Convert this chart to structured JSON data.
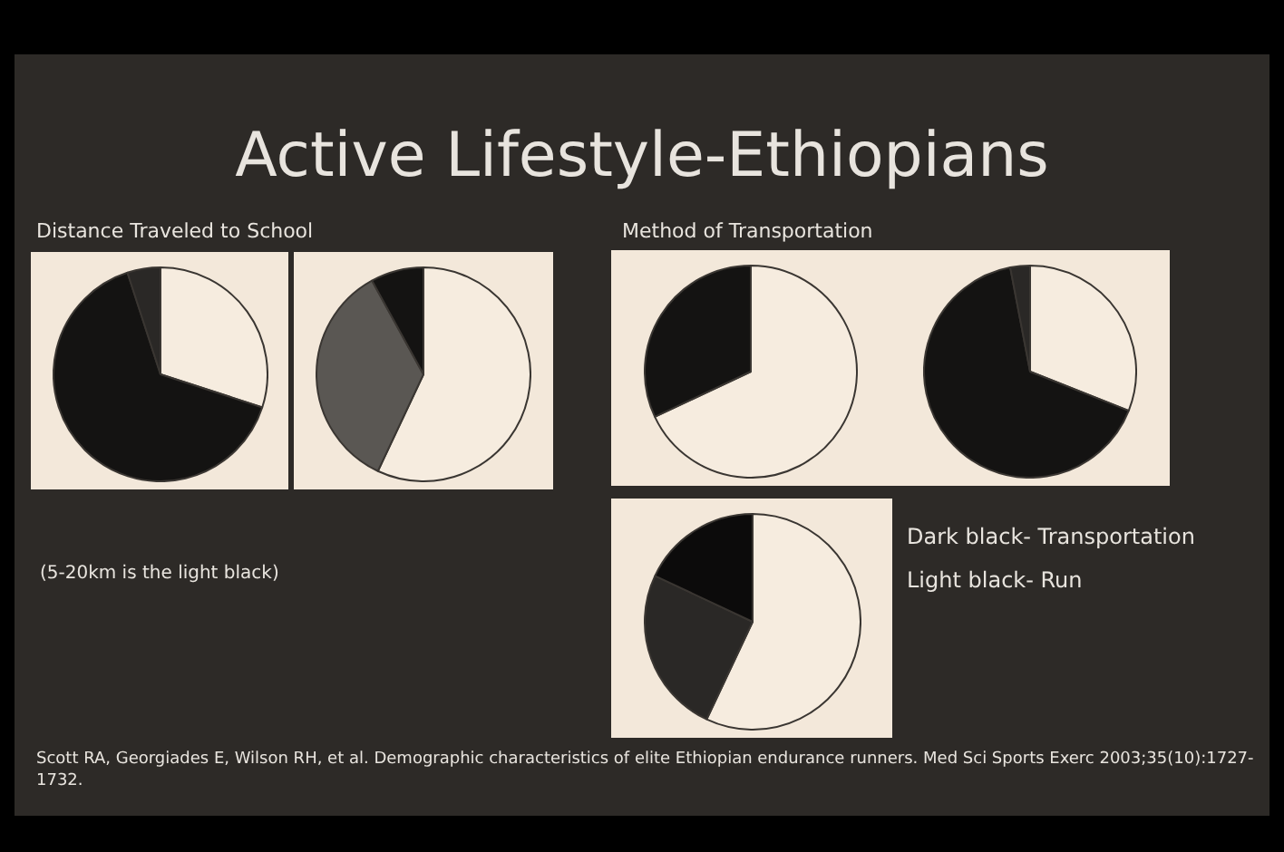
{
  "chart_data": [
    {
      "type": "pie",
      "subtitle": "Distance Traveled to School",
      "categories": [
        null,
        null,
        null
      ],
      "values": [
        30,
        65,
        5
      ],
      "colors": [
        "#f6ecdf",
        "#141312",
        "#2a2826"
      ],
      "annotations": [
        "Active Lifestyle-Ethiopians",
        "(5-20km is the light black)"
      ]
    },
    {
      "type": "pie",
      "categories": [
        null,
        null,
        null
      ],
      "values": [
        57,
        35,
        8
      ],
      "colors": [
        "#f6ecdf",
        "#5a5753",
        "#141312"
      ]
    },
    {
      "type": "pie",
      "subtitle": "Method of Transportation",
      "categories": [
        null,
        null
      ],
      "values": [
        68,
        32
      ],
      "colors": [
        "#f6ecdf",
        "#141312"
      ]
    },
    {
      "type": "pie",
      "categories": [
        null,
        null,
        null
      ],
      "values": [
        31,
        66,
        3
      ],
      "colors": [
        "#f6ecdf",
        "#141312",
        "#2a2826"
      ]
    },
    {
      "type": "pie",
      "categories": [
        null,
        null,
        null
      ],
      "values": [
        57,
        25,
        18
      ],
      "colors": [
        "#f6ecdf",
        "#2a2826",
        "#0c0b0b"
      ],
      "annotations": [
        "Dark black- Transportation",
        "Light black- Run",
        "Scott RA, Georgiades E, Wilson RH, et al.  Demographic characteristics of elite Ethiopian endurance runners.  Med Sci Sports Exerc 2003;35(10):1727-1732."
      ]
    }
  ]
}
